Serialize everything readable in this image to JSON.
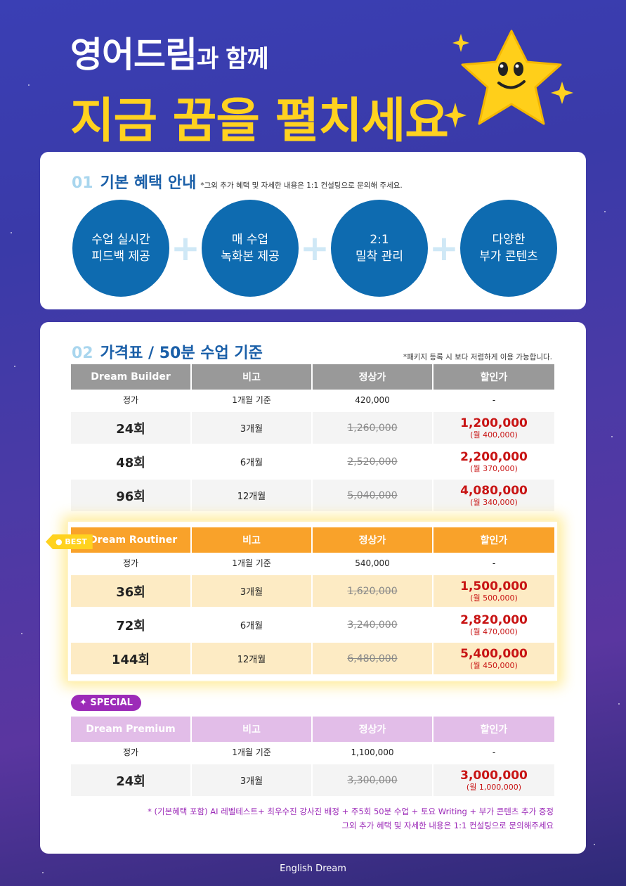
{
  "hero": {
    "line1_big": "영어드림",
    "line1_small": "과 함께",
    "line2": "지금 꿈을 펼치세요"
  },
  "section1": {
    "num": "01",
    "title": "기본 혜택 안내",
    "note": "*그외 추가 혜택 및 자세한 내용은 1:1 컨설팅으로 문의해 주세요.",
    "benefits": [
      "수업 실시간\n피드백 제공",
      "매 수업\n녹화본 제공",
      "2:1\n밀착 관리",
      "다양한\n부가 콘텐츠"
    ]
  },
  "section2": {
    "num": "02",
    "title": "가격표 / 50분 수업 기준",
    "note": "*패키지 등록 시 보다 저렴하게 이용 가능합니다."
  },
  "table_builder": {
    "headers": [
      "Dream Builder",
      "비고",
      "정상가",
      "할인가"
    ],
    "base": [
      "정가",
      "1개월 기준",
      "420,000",
      "-"
    ],
    "rows": [
      {
        "count": "24회",
        "note": "3개월",
        "regular": "1,260,000",
        "discount": "1,200,000",
        "monthly": "(월 400,000)"
      },
      {
        "count": "48회",
        "note": "6개월",
        "regular": "2,520,000",
        "discount": "2,200,000",
        "monthly": "(월 370,000)"
      },
      {
        "count": "96회",
        "note": "12개월",
        "regular": "5,040,000",
        "discount": "4,080,000",
        "monthly": "(월 340,000)"
      }
    ]
  },
  "table_routiner": {
    "badge": "● BEST",
    "headers": [
      "Dream Routiner",
      "비고",
      "정상가",
      "할인가"
    ],
    "base": [
      "정가",
      "1개월 기준",
      "540,000",
      "-"
    ],
    "rows": [
      {
        "count": "36회",
        "note": "3개월",
        "regular": "1,620,000",
        "discount": "1,500,000",
        "monthly": "(월 500,000)"
      },
      {
        "count": "72회",
        "note": "6개월",
        "regular": "3,240,000",
        "discount": "2,820,000",
        "monthly": "(월 470,000)"
      },
      {
        "count": "144회",
        "note": "12개월",
        "regular": "6,480,000",
        "discount": "5,400,000",
        "monthly": "(월 450,000)"
      }
    ]
  },
  "table_premium": {
    "badge": "✦ SPECIAL",
    "headers": [
      "Dream Premium",
      "비고",
      "정상가",
      "할인가"
    ],
    "base": [
      "정가",
      "1개월 기준",
      "1,100,000",
      "-"
    ],
    "rows": [
      {
        "count": "24회",
        "note": "3개월",
        "regular": "3,300,000",
        "discount": "3,000,000",
        "monthly": "(월 1,000,000)"
      }
    ]
  },
  "footer": {
    "line1": "* (기본혜택 포함) AI 레벨테스트+ 최우수진 강사진 배정 + 주5회 50분 수업 + 토요 Writing + 부가 콘텐츠 추가 증정",
    "line2": "그외 추가 혜택 및 자세한 내용은 1:1 컨설팅으로 문의해주세요",
    "brand": "English Dream"
  },
  "colors": {
    "accent_blue": "#0e6bb0",
    "accent_yellow": "#ffd21f",
    "accent_orange": "#f9a22a",
    "accent_purple": "#9c2bb8",
    "discount_red": "#c81414"
  },
  "icons": [
    "star-mascot-icon",
    "sparkle-icon",
    "plus-icon"
  ]
}
